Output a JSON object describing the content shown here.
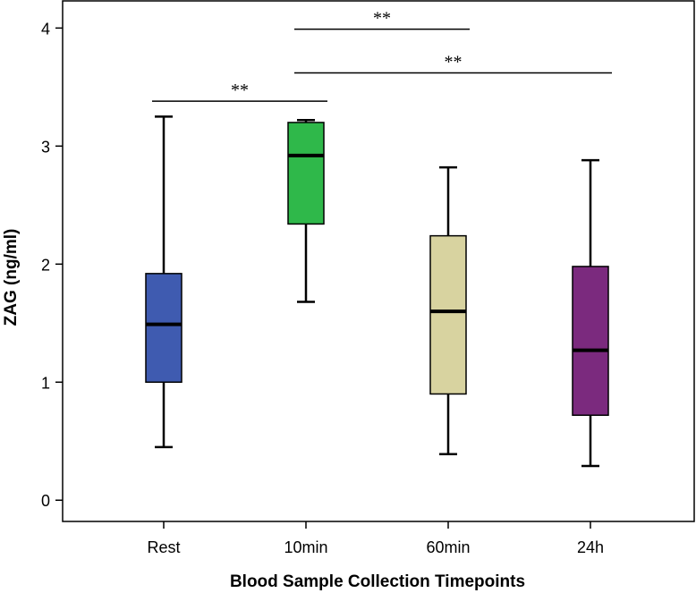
{
  "chart_data": {
    "type": "box",
    "categories": [
      "Rest",
      "10min",
      "60min",
      "24h"
    ],
    "xlabel": "Blood Sample Collection Timepoints",
    "ylabel": "ZAG (ng/ml)",
    "ylim": [
      -0.18,
      4.23
    ],
    "yticks": [
      0,
      1,
      2,
      3,
      4
    ],
    "grid": false,
    "boxes": [
      {
        "category": "Rest",
        "min": 0.45,
        "q1": 1.0,
        "median": 1.49,
        "q3": 1.92,
        "max": 3.25,
        "color": "#3f5bb0"
      },
      {
        "category": "10min",
        "min": 1.68,
        "q1": 2.34,
        "median": 2.92,
        "q3": 3.2,
        "max": 3.22,
        "color": "#2fb84a"
      },
      {
        "category": "60min",
        "min": 0.39,
        "q1": 0.9,
        "median": 1.6,
        "q3": 2.24,
        "max": 2.82,
        "color": "#d8d3a0"
      },
      {
        "category": "24h",
        "min": 0.29,
        "q1": 0.72,
        "median": 1.27,
        "q3": 1.98,
        "max": 2.88,
        "color": "#7b2a7e"
      }
    ],
    "significance": [
      {
        "from": "Rest",
        "to": "10min",
        "label": "**",
        "y": 3.38
      },
      {
        "from": "10min",
        "to": "60min",
        "label": "**",
        "y": 3.99
      },
      {
        "from": "10min",
        "to": "24h",
        "label": "**",
        "y": 3.62
      }
    ]
  }
}
